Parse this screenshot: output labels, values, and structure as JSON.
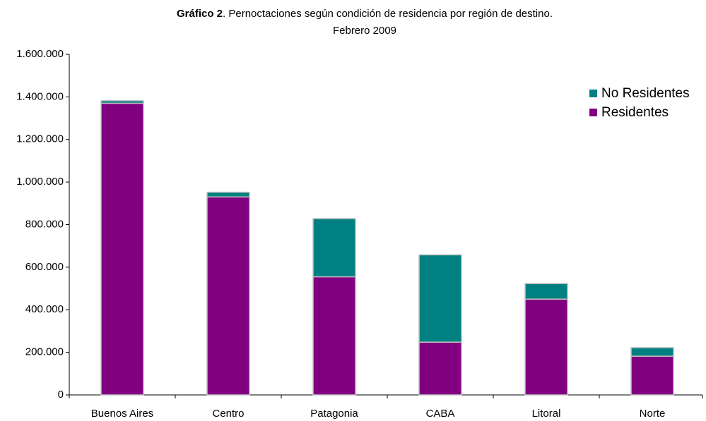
{
  "chart_data": {
    "type": "stacked_bar",
    "title": {
      "bold": "Gráfico 2",
      "text": ". Pernoctaciones según condición de residencia por región de destino."
    },
    "subtitle": "Febrero 2009",
    "categories": [
      "Buenos Aires",
      "Centro",
      "Patagonia",
      "CABA",
      "Litoral",
      "Norte"
    ],
    "series": [
      {
        "name": "Residentes",
        "color": "#800080",
        "values": [
          1370000,
          930000,
          555000,
          248000,
          450000,
          182000
        ]
      },
      {
        "name": "No Residentes",
        "color": "#008080",
        "values": [
          12000,
          22000,
          273000,
          410000,
          73000,
          40000
        ]
      }
    ],
    "ylim": [
      0,
      1600000
    ],
    "yticks": [
      0,
      {
        "value": 200000,
        "label": "200.000"
      },
      {
        "value": 400000,
        "label": "400.000"
      },
      {
        "value": 600000,
        "label": "600.000"
      },
      {
        "value": 800000,
        "label": "800.000"
      },
      {
        "value": 1000000,
        "label": "1.000.000"
      },
      {
        "value": 1200000,
        "label": "1.200.000"
      },
      {
        "value": 1400000,
        "label": "1.400.000"
      },
      {
        "value": 1600000,
        "label": "1.600.000"
      }
    ],
    "grid": false,
    "legend": "top-right"
  }
}
